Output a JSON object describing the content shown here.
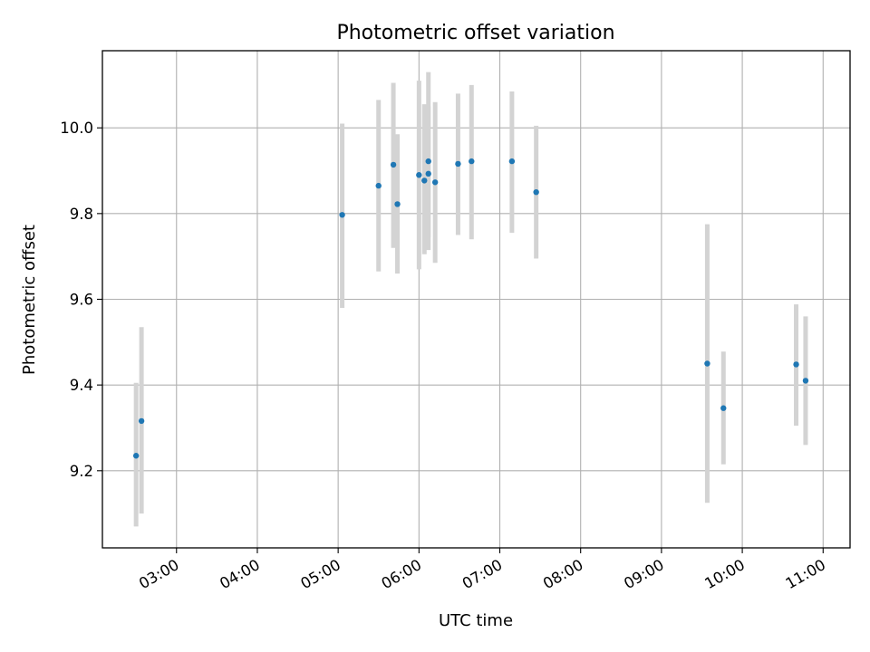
{
  "chart_data": {
    "type": "scatter",
    "title": "Photometric offset variation",
    "xlabel": "UTC time",
    "ylabel": "Photometric offset",
    "x_axis_type": "time",
    "xlim": [
      "02:05",
      "11:20"
    ],
    "ylim": [
      9.02,
      10.18
    ],
    "x_ticks": [
      "03:00",
      "04:00",
      "05:00",
      "06:00",
      "07:00",
      "08:00",
      "09:00",
      "10:00",
      "11:00"
    ],
    "y_ticks": [
      9.2,
      9.4,
      9.6,
      9.8,
      10.0
    ],
    "y_tick_labels": [
      "9.2",
      "9.4",
      "9.6",
      "9.8",
      "10.0"
    ],
    "grid": true,
    "point_color": "#1f77b4",
    "errorbar_color": "#d3d3d3",
    "points": [
      {
        "x": "02:30",
        "y": 9.235,
        "ylow": 9.07,
        "yhigh": 9.405
      },
      {
        "x": "02:34",
        "y": 9.316,
        "ylow": 9.1,
        "yhigh": 9.535
      },
      {
        "x": "05:03",
        "y": 9.797,
        "ylow": 9.58,
        "yhigh": 10.01
      },
      {
        "x": "05:30",
        "y": 9.865,
        "ylow": 9.665,
        "yhigh": 10.065
      },
      {
        "x": "05:41",
        "y": 9.914,
        "ylow": 9.72,
        "yhigh": 10.105
      },
      {
        "x": "05:44",
        "y": 9.822,
        "ylow": 9.66,
        "yhigh": 9.985
      },
      {
        "x": "06:00",
        "y": 9.89,
        "ylow": 9.67,
        "yhigh": 10.11
      },
      {
        "x": "06:04",
        "y": 9.877,
        "ylow": 9.705,
        "yhigh": 10.055
      },
      {
        "x": "06:07",
        "y": 9.922,
        "ylow": 9.745,
        "yhigh": 10.05
      },
      {
        "x": "06:07",
        "y": 9.893,
        "ylow": 9.715,
        "yhigh": 10.13
      },
      {
        "x": "06:12",
        "y": 9.873,
        "ylow": 9.685,
        "yhigh": 10.06
      },
      {
        "x": "06:29",
        "y": 9.916,
        "ylow": 9.75,
        "yhigh": 10.08
      },
      {
        "x": "06:39",
        "y": 9.922,
        "ylow": 9.74,
        "yhigh": 10.1
      },
      {
        "x": "07:09",
        "y": 9.922,
        "ylow": 9.755,
        "yhigh": 10.085
      },
      {
        "x": "07:27",
        "y": 9.85,
        "ylow": 9.695,
        "yhigh": 10.005
      },
      {
        "x": "09:34",
        "y": 9.45,
        "ylow": 9.125,
        "yhigh": 9.775
      },
      {
        "x": "09:46",
        "y": 9.346,
        "ylow": 9.215,
        "yhigh": 9.478
      },
      {
        "x": "10:40",
        "y": 9.448,
        "ylow": 9.305,
        "yhigh": 9.588
      },
      {
        "x": "10:47",
        "y": 9.41,
        "ylow": 9.26,
        "yhigh": 9.56
      }
    ]
  }
}
